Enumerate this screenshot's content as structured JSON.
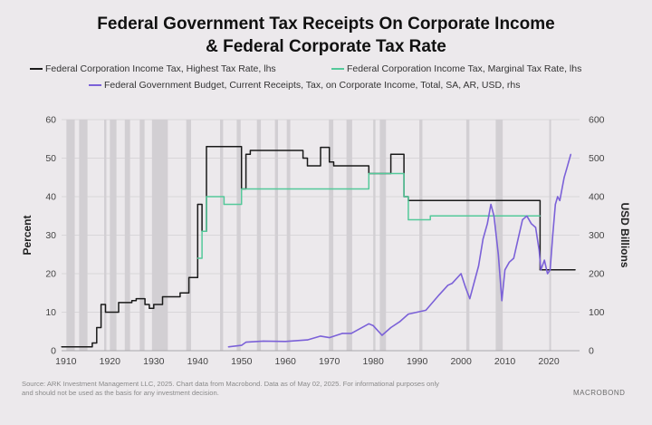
{
  "title_line1": "Federal Government Tax Receipts On Corporate Income",
  "title_line2": "& Federal Corporate Tax Rate",
  "legend": [
    {
      "label": "Federal Corporation Income Tax, Highest Tax Rate, lhs",
      "color": "#1a1a1a"
    },
    {
      "label": "Federal Corporation Income Tax, Marginal Tax Rate, lhs",
      "color": "#54c99a"
    },
    {
      "label": "Federal Government Budget, Current Receipts, Tax, on Corporate Income, Total, SA, AR, USD, rhs",
      "color": "#7b61d8"
    }
  ],
  "footer_line1": "Source: ARK Investment Management LLC, 2025. Chart data from Macrobond. Data as of May 02, 2025. For informational purposes only",
  "footer_line2": "and should not be used as the basis for any investment decision.",
  "logo_text": "MACROBOND",
  "chart_data": {
    "type": "line",
    "ylabel": "Percent",
    "y2label": "USD Billions",
    "xlim": [
      1909,
      2027
    ],
    "ylim": [
      0,
      60
    ],
    "y2lim": [
      0,
      600
    ],
    "xticks": [
      1910,
      1920,
      1930,
      1940,
      1950,
      1960,
      1970,
      1980,
      1990,
      2000,
      2010,
      2020
    ],
    "yticks": [
      0,
      10,
      20,
      30,
      40,
      50,
      60
    ],
    "y2ticks": [
      0,
      100,
      200,
      300,
      400,
      500,
      600
    ],
    "grid": true,
    "recessions": [
      [
        1910.1,
        1912.0
      ],
      [
        1913.0,
        1914.9
      ],
      [
        1918.7,
        1919.2
      ],
      [
        1920.0,
        1921.5
      ],
      [
        1923.4,
        1924.6
      ],
      [
        1926.8,
        1927.9
      ],
      [
        1929.6,
        1933.2
      ],
      [
        1937.4,
        1938.5
      ],
      [
        1945.1,
        1945.8
      ],
      [
        1948.9,
        1949.8
      ],
      [
        1953.5,
        1954.4
      ],
      [
        1957.6,
        1958.3
      ],
      [
        1960.3,
        1961.1
      ],
      [
        1969.9,
        1970.9
      ],
      [
        1973.9,
        1975.2
      ],
      [
        1980.0,
        1980.5
      ],
      [
        1981.5,
        1982.9
      ],
      [
        1990.5,
        1991.2
      ],
      [
        2001.2,
        2001.9
      ],
      [
        2007.9,
        2009.5
      ],
      [
        2020.1,
        2020.4
      ]
    ],
    "series": [
      {
        "name": "Federal Corporation Income Tax, Highest Tax Rate, lhs",
        "axis": "left",
        "color": "#1a1a1a",
        "step": true,
        "x": [
          1909,
          1916,
          1917,
          1918,
          1919,
          1922,
          1925,
          1926,
          1928,
          1929,
          1930,
          1932,
          1936,
          1938,
          1940,
          1941,
          1942,
          1946,
          1950,
          1951,
          1952,
          1964,
          1965,
          1968,
          1970,
          1971,
          1979,
          1984,
          1987,
          1988,
          1993,
          2018,
          2026
        ],
        "y": [
          1,
          2,
          6,
          12,
          10,
          12.5,
          13,
          13.5,
          12,
          11,
          12,
          14,
          15,
          19,
          38,
          31,
          53,
          53,
          42,
          51,
          52,
          50,
          48,
          52.8,
          49,
          48,
          46,
          51,
          40,
          39,
          39,
          21,
          21
        ]
      },
      {
        "name": "Federal Corporation Income Tax, Marginal Tax Rate, lhs",
        "axis": "left",
        "color": "#54c99a",
        "step": true,
        "x": [
          1940,
          1941,
          1942,
          1946,
          1950,
          1979,
          1987,
          1988,
          1993,
          2018
        ],
        "y": [
          24,
          31,
          40,
          38,
          42,
          46,
          40,
          34,
          35,
          35
        ]
      },
      {
        "name": "Federal Government Budget, Current Receipts, Tax, on Corporate Income, Total, SA, AR, USD, rhs",
        "axis": "right",
        "color": "#7b61d8",
        "step": false,
        "x": [
          1947,
          1950,
          1951,
          1955,
          1960,
          1965,
          1968,
          1970,
          1973,
          1975,
          1979,
          1980,
          1982,
          1984,
          1986,
          1988,
          1990,
          1992,
          1995,
          1997,
          1998,
          2000,
          2001,
          2002,
          2004,
          2005,
          2006,
          2006.8,
          2007.5,
          2008.5,
          2009.3,
          2010,
          2011,
          2012,
          2013,
          2014,
          2015,
          2016,
          2017,
          2017.8,
          2018.2,
          2019,
          2019.7,
          2020.3,
          2020.9,
          2021.5,
          2022,
          2022.5,
          2023,
          2023.5,
          2024,
          2024.5,
          2025
        ],
        "y": [
          10,
          14,
          22,
          25,
          24,
          28,
          38,
          34,
          45,
          45,
          70,
          65,
          40,
          60,
          75,
          95,
          100,
          105,
          145,
          170,
          175,
          200,
          165,
          135,
          220,
          290,
          330,
          380,
          350,
          250,
          130,
          210,
          230,
          240,
          290,
          340,
          350,
          330,
          320,
          260,
          210,
          235,
          200,
          210,
          300,
          380,
          400,
          390,
          420,
          450,
          470,
          490,
          510
        ]
      }
    ]
  }
}
